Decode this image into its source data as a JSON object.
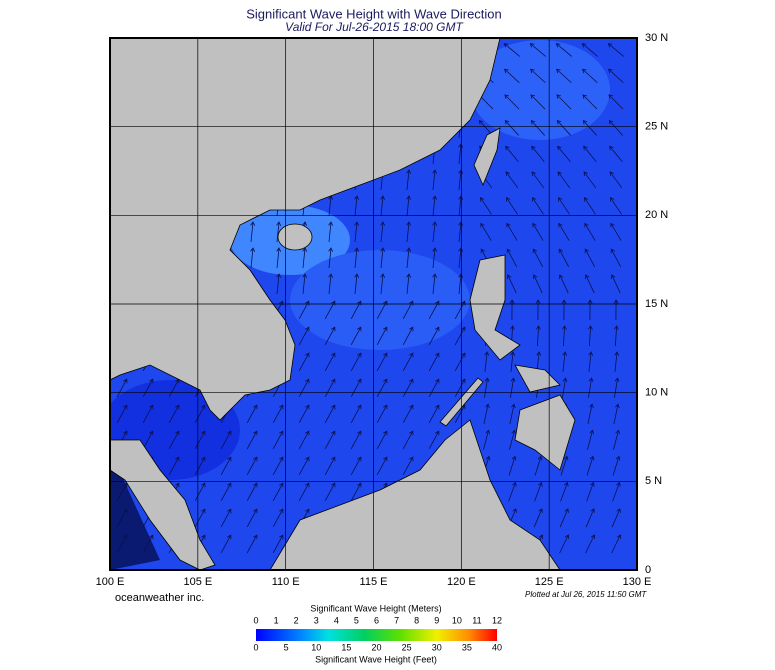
{
  "header": {
    "title": "Significant Wave Height with Wave Direction",
    "subtitle": "Valid For Jul-26-2015 18:00 GMT"
  },
  "map": {
    "lon_labels": [
      "100 E",
      "105 E",
      "110 E",
      "115 E",
      "120 E",
      "125 E",
      "130 E"
    ],
    "lat_labels": [
      "30 N",
      "25 N",
      "20 N",
      "15 N",
      "10 N",
      "5 N",
      "0"
    ]
  },
  "footer": {
    "credit": "oceanweather inc.",
    "plotted": "Plotted at Jul 26, 2015 11:50 GMT"
  },
  "colorbar": {
    "title_meters": "Significant Wave Height (Meters)",
    "meters": [
      0,
      1,
      2,
      3,
      4,
      5,
      6,
      7,
      8,
      9,
      10,
      11,
      12
    ],
    "title_feet": "Significant Wave Height (Feet)",
    "feet": [
      0,
      5,
      10,
      15,
      20,
      25,
      30,
      35,
      40
    ]
  }
}
